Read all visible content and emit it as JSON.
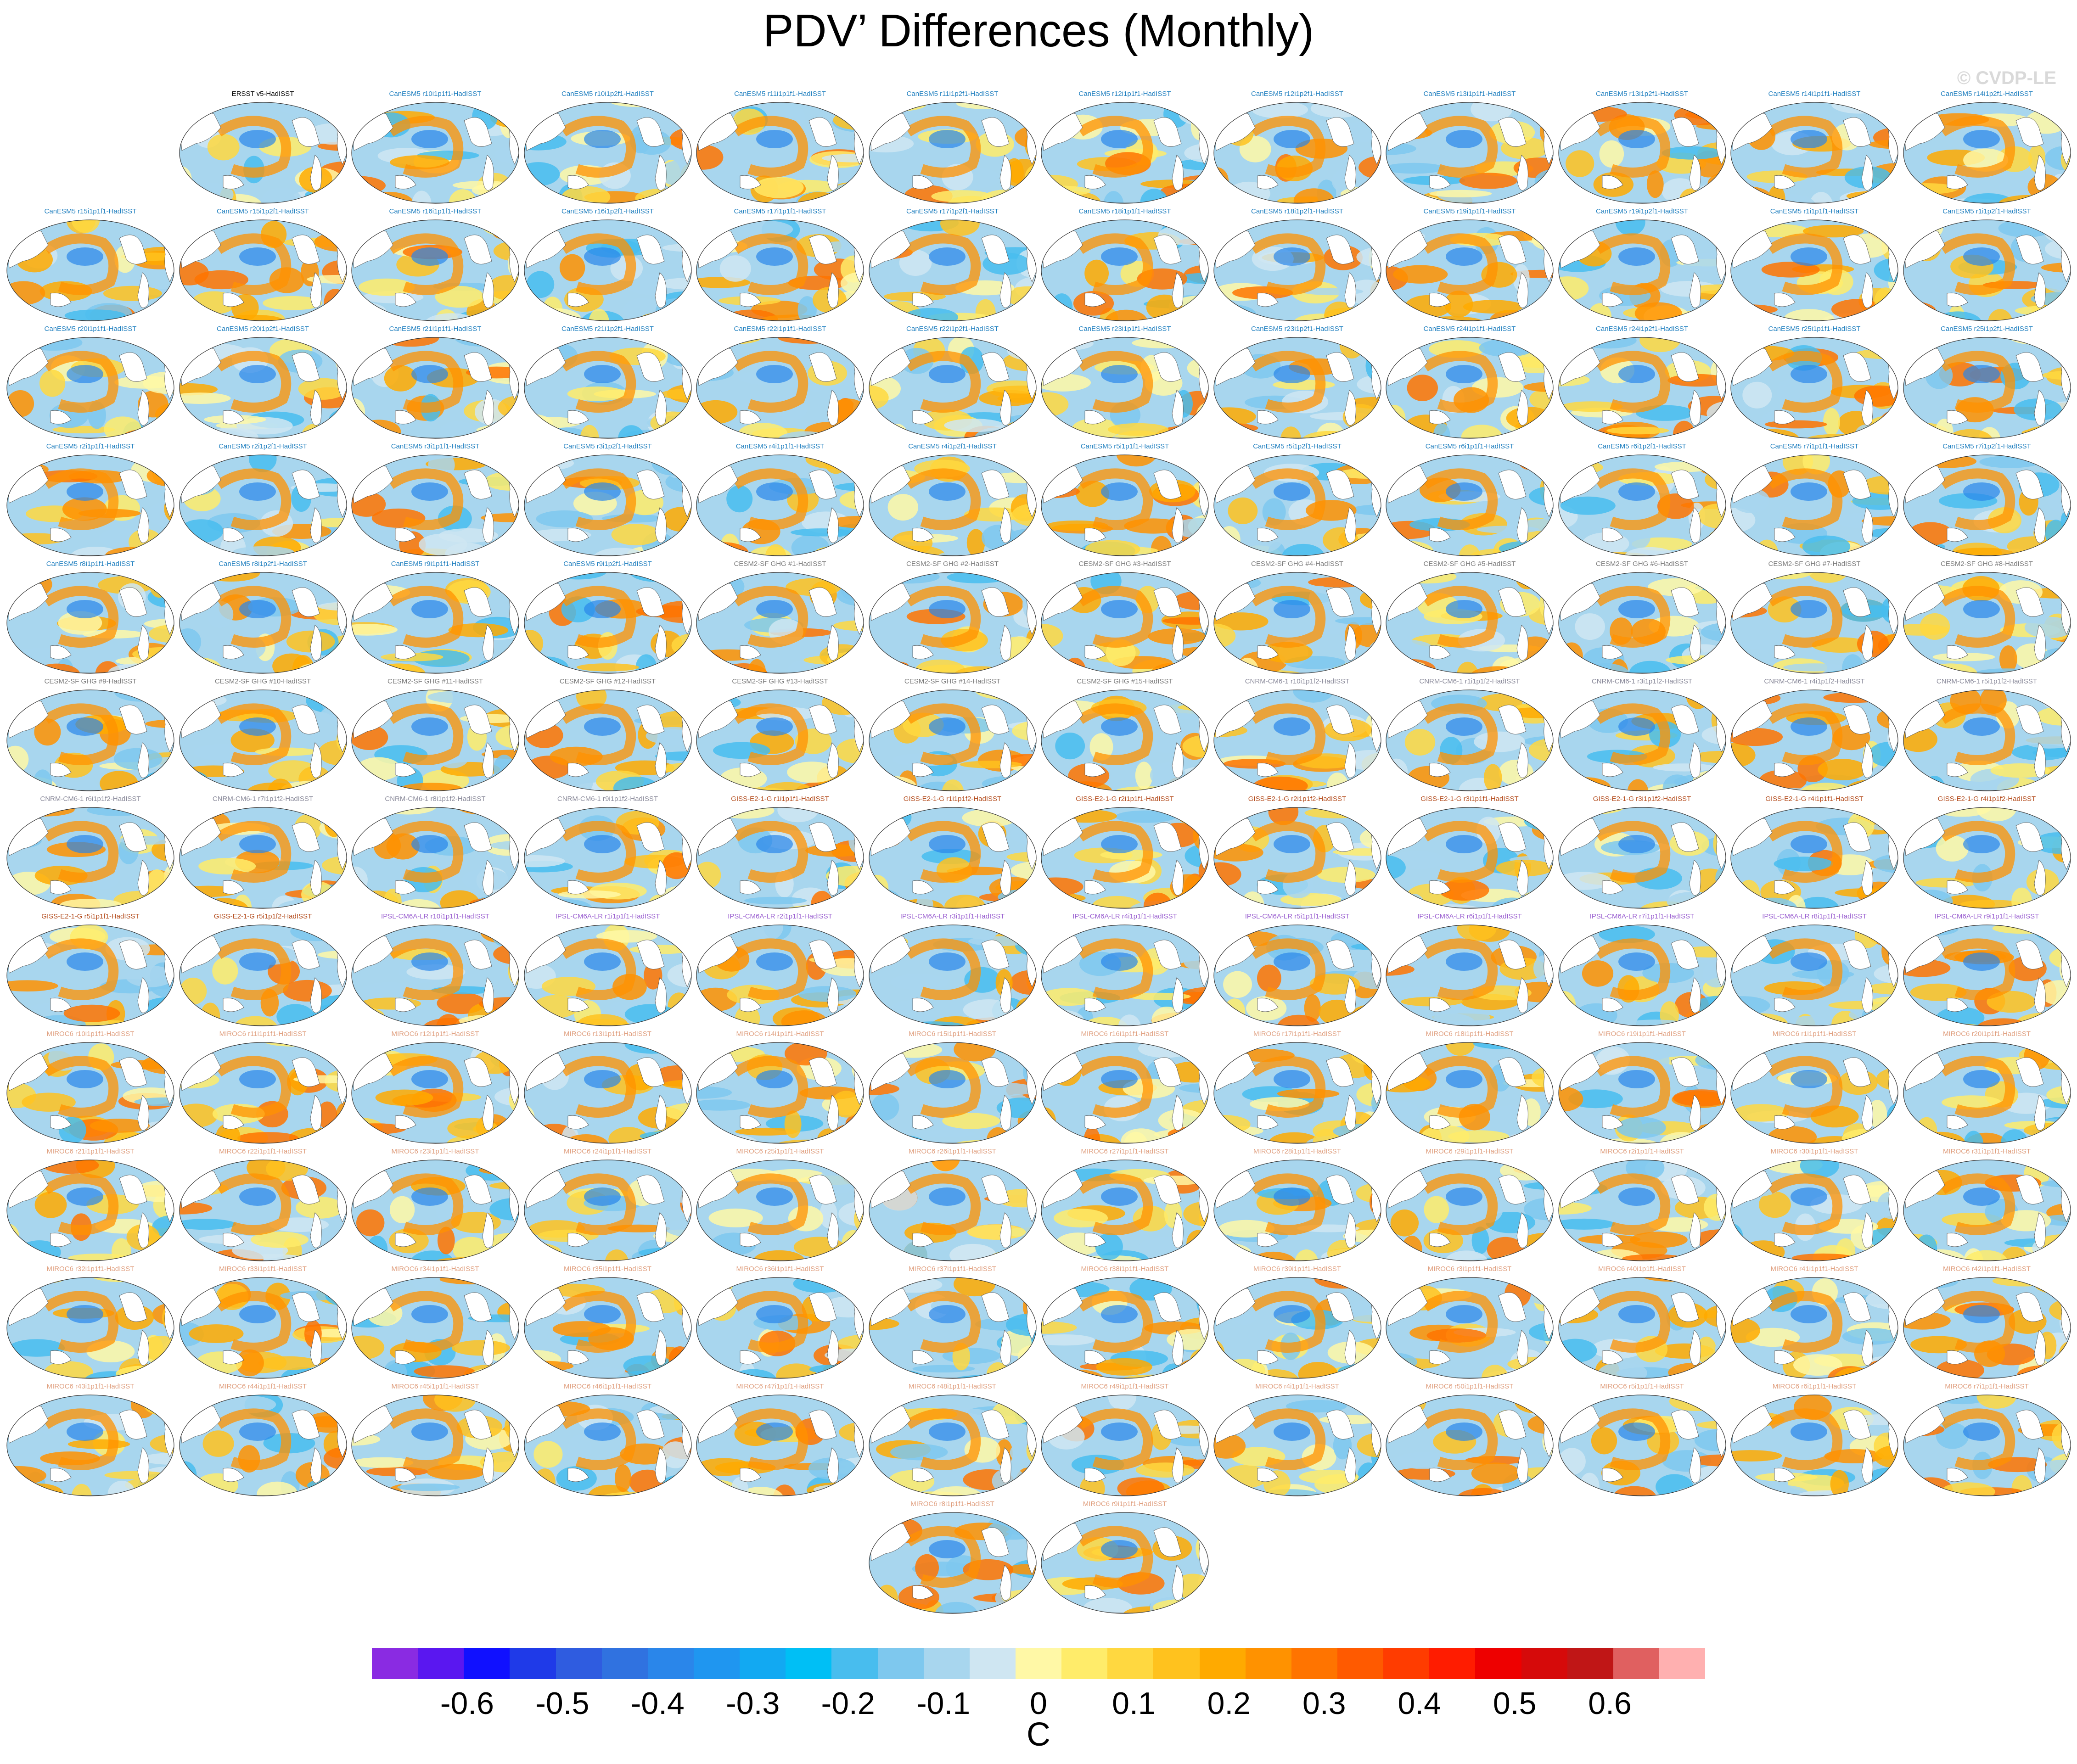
{
  "title": "PDV’ Differences (Monthly)",
  "watermark": "© CVDP-LE",
  "chart_data": {
    "type": "heatmap",
    "title": "PDV’ Differences (Monthly)",
    "map_projection": "global ellipse (Pacific-centred)",
    "units": "C",
    "colorbar": {
      "ticks": [
        "-0.6",
        "-0.5",
        "-0.4",
        "-0.3",
        "-0.2",
        "-0.1",
        "0",
        "0.1",
        "0.2",
        "0.3",
        "0.4",
        "0.5",
        "0.6"
      ],
      "tick_values": [
        -0.6,
        -0.5,
        -0.4,
        -0.3,
        -0.2,
        -0.1,
        0,
        0.1,
        0.2,
        0.3,
        0.4,
        0.5,
        0.6
      ],
      "range": [
        -0.7,
        0.7
      ],
      "colors": [
        "#8a2be2",
        "#5a17f0",
        "#1010ff",
        "#1f3ae8",
        "#2f5ce0",
        "#3072e0",
        "#2a86ea",
        "#1f96f0",
        "#12a9f2",
        "#00bff5",
        "#48bdee",
        "#7ec8ee",
        "#a8d6ee",
        "#cfe6f2",
        "#fff8a6",
        "#ffec6a",
        "#ffd840",
        "#ffc21e",
        "#ffaa00",
        "#ff9200",
        "#ff7400",
        "#ff5a00",
        "#ff3c00",
        "#ff1c00",
        "#ee0000",
        "#d60a0a",
        "#c01616",
        "#e06060",
        "#ffb0b0"
      ]
    },
    "panels": [
      {
        "label": "ERSST v5-HadISST",
        "group": "obs"
      },
      {
        "label": "CanESM5 r10i1p1f1-HadISST",
        "group": "CanESM5"
      },
      {
        "label": "CanESM5 r10i1p2f1-HadISST",
        "group": "CanESM5"
      },
      {
        "label": "CanESM5 r11i1p1f1-HadISST",
        "group": "CanESM5"
      },
      {
        "label": "CanESM5 r11i1p2f1-HadISST",
        "group": "CanESM5"
      },
      {
        "label": "CanESM5 r12i1p1f1-HadISST",
        "group": "CanESM5"
      },
      {
        "label": "CanESM5 r12i1p2f1-HadISST",
        "group": "CanESM5"
      },
      {
        "label": "CanESM5 r13i1p1f1-HadISST",
        "group": "CanESM5"
      },
      {
        "label": "CanESM5 r13i1p2f1-HadISST",
        "group": "CanESM5"
      },
      {
        "label": "CanESM5 r14i1p1f1-HadISST",
        "group": "CanESM5"
      },
      {
        "label": "CanESM5 r14i1p2f1-HadISST",
        "group": "CanESM5"
      },
      {
        "label": "CanESM5 r15i1p1f1-HadISST",
        "group": "CanESM5"
      },
      {
        "label": "CanESM5 r15i1p2f1-HadISST",
        "group": "CanESM5"
      },
      {
        "label": "CanESM5 r16i1p1f1-HadISST",
        "group": "CanESM5"
      },
      {
        "label": "CanESM5 r16i1p2f1-HadISST",
        "group": "CanESM5"
      },
      {
        "label": "CanESM5 r17i1p1f1-HadISST",
        "group": "CanESM5"
      },
      {
        "label": "CanESM5 r17i1p2f1-HadISST",
        "group": "CanESM5"
      },
      {
        "label": "CanESM5 r18i1p1f1-HadISST",
        "group": "CanESM5"
      },
      {
        "label": "CanESM5 r18i1p2f1-HadISST",
        "group": "CanESM5"
      },
      {
        "label": "CanESM5 r19i1p1f1-HadISST",
        "group": "CanESM5"
      },
      {
        "label": "CanESM5 r19i1p2f1-HadISST",
        "group": "CanESM5"
      },
      {
        "label": "CanESM5 r1i1p1f1-HadISST",
        "group": "CanESM5"
      },
      {
        "label": "CanESM5 r1i1p2f1-HadISST",
        "group": "CanESM5"
      },
      {
        "label": "CanESM5 r20i1p1f1-HadISST",
        "group": "CanESM5"
      },
      {
        "label": "CanESM5 r20i1p2f1-HadISST",
        "group": "CanESM5"
      },
      {
        "label": "CanESM5 r21i1p1f1-HadISST",
        "group": "CanESM5"
      },
      {
        "label": "CanESM5 r21i1p2f1-HadISST",
        "group": "CanESM5"
      },
      {
        "label": "CanESM5 r22i1p1f1-HadISST",
        "group": "CanESM5"
      },
      {
        "label": "CanESM5 r22i1p2f1-HadISST",
        "group": "CanESM5"
      },
      {
        "label": "CanESM5 r23i1p1f1-HadISST",
        "group": "CanESM5"
      },
      {
        "label": "CanESM5 r23i1p2f1-HadISST",
        "group": "CanESM5"
      },
      {
        "label": "CanESM5 r24i1p1f1-HadISST",
        "group": "CanESM5"
      },
      {
        "label": "CanESM5 r24i1p2f1-HadISST",
        "group": "CanESM5"
      },
      {
        "label": "CanESM5 r25i1p1f1-HadISST",
        "group": "CanESM5"
      },
      {
        "label": "CanESM5 r25i1p2f1-HadISST",
        "group": "CanESM5"
      },
      {
        "label": "CanESM5 r2i1p1f1-HadISST",
        "group": "CanESM5"
      },
      {
        "label": "CanESM5 r2i1p2f1-HadISST",
        "group": "CanESM5"
      },
      {
        "label": "CanESM5 r3i1p1f1-HadISST",
        "group": "CanESM5"
      },
      {
        "label": "CanESM5 r3i1p2f1-HadISST",
        "group": "CanESM5"
      },
      {
        "label": "CanESM5 r4i1p1f1-HadISST",
        "group": "CanESM5"
      },
      {
        "label": "CanESM5 r4i1p2f1-HadISST",
        "group": "CanESM5"
      },
      {
        "label": "CanESM5 r5i1p1f1-HadISST",
        "group": "CanESM5"
      },
      {
        "label": "CanESM5 r5i1p2f1-HadISST",
        "group": "CanESM5"
      },
      {
        "label": "CanESM5 r6i1p1f1-HadISST",
        "group": "CanESM5"
      },
      {
        "label": "CanESM5 r6i1p2f1-HadISST",
        "group": "CanESM5"
      },
      {
        "label": "CanESM5 r7i1p1f1-HadISST",
        "group": "CanESM5"
      },
      {
        "label": "CanESM5 r7i1p2f1-HadISST",
        "group": "CanESM5"
      },
      {
        "label": "CanESM5 r8i1p1f1-HadISST",
        "group": "CanESM5"
      },
      {
        "label": "CanESM5 r8i1p2f1-HadISST",
        "group": "CanESM5"
      },
      {
        "label": "CanESM5 r9i1p1f1-HadISST",
        "group": "CanESM5"
      },
      {
        "label": "CanESM5 r9i1p2f1-HadISST",
        "group": "CanESM5"
      },
      {
        "label": "CESM2-SF GHG #1-HadISST",
        "group": "CESM2"
      },
      {
        "label": "CESM2-SF GHG #2-HadISST",
        "group": "CESM2"
      },
      {
        "label": "CESM2-SF GHG #3-HadISST",
        "group": "CESM2"
      },
      {
        "label": "CESM2-SF GHG #4-HadISST",
        "group": "CESM2"
      },
      {
        "label": "CESM2-SF GHG #5-HadISST",
        "group": "CESM2"
      },
      {
        "label": "CESM2-SF GHG #6-HadISST",
        "group": "CESM2"
      },
      {
        "label": "CESM2-SF GHG #7-HadISST",
        "group": "CESM2"
      },
      {
        "label": "CESM2-SF GHG #8-HadISST",
        "group": "CESM2"
      },
      {
        "label": "CESM2-SF GHG #9-HadISST",
        "group": "CESM2"
      },
      {
        "label": "CESM2-SF GHG #10-HadISST",
        "group": "CESM2"
      },
      {
        "label": "CESM2-SF GHG #11-HadISST",
        "group": "CESM2"
      },
      {
        "label": "CESM2-SF GHG #12-HadISST",
        "group": "CESM2"
      },
      {
        "label": "CESM2-SF GHG #13-HadISST",
        "group": "CESM2"
      },
      {
        "label": "CESM2-SF GHG #14-HadISST",
        "group": "CESM2"
      },
      {
        "label": "CESM2-SF GHG #15-HadISST",
        "group": "CESM2"
      },
      {
        "label": "CNRM-CM6-1 r10i1p1f2-HadISST",
        "group": "CNRM"
      },
      {
        "label": "CNRM-CM6-1 r1i1p1f2-HadISST",
        "group": "CNRM"
      },
      {
        "label": "CNRM-CM6-1 r3i1p1f2-HadISST",
        "group": "CNRM"
      },
      {
        "label": "CNRM-CM6-1 r4i1p1f2-HadISST",
        "group": "CNRM"
      },
      {
        "label": "CNRM-CM6-1 r5i1p1f2-HadISST",
        "group": "CNRM"
      },
      {
        "label": "CNRM-CM6-1 r6i1p1f2-HadISST",
        "group": "CNRM"
      },
      {
        "label": "CNRM-CM6-1 r7i1p1f2-HadISST",
        "group": "CNRM"
      },
      {
        "label": "CNRM-CM6-1 r8i1p1f2-HadISST",
        "group": "CNRM"
      },
      {
        "label": "CNRM-CM6-1 r9i1p1f2-HadISST",
        "group": "CNRM"
      },
      {
        "label": "GISS-E2-1-G r1i1p1f1-HadISST",
        "group": "GISS"
      },
      {
        "label": "GISS-E2-1-G r1i1p1f2-HadISST",
        "group": "GISS"
      },
      {
        "label": "GISS-E2-1-G r2i1p1f1-HadISST",
        "group": "GISS"
      },
      {
        "label": "GISS-E2-1-G r2i1p1f2-HadISST",
        "group": "GISS"
      },
      {
        "label": "GISS-E2-1-G r3i1p1f1-HadISST",
        "group": "GISS"
      },
      {
        "label": "GISS-E2-1-G r3i1p1f2-HadISST",
        "group": "GISS"
      },
      {
        "label": "GISS-E2-1-G r4i1p1f1-HadISST",
        "group": "GISS"
      },
      {
        "label": "GISS-E2-1-G r4i1p1f2-HadISST",
        "group": "GISS"
      },
      {
        "label": "GISS-E2-1-G r5i1p1f1-HadISST",
        "group": "GISS"
      },
      {
        "label": "GISS-E2-1-G r5i1p1f2-HadISST",
        "group": "GISS"
      },
      {
        "label": "IPSL-CM6A-LR r10i1p1f1-HadISST",
        "group": "IPSL"
      },
      {
        "label": "IPSL-CM6A-LR r1i1p1f1-HadISST",
        "group": "IPSL"
      },
      {
        "label": "IPSL-CM6A-LR r2i1p1f1-HadISST",
        "group": "IPSL"
      },
      {
        "label": "IPSL-CM6A-LR r3i1p1f1-HadISST",
        "group": "IPSL"
      },
      {
        "label": "IPSL-CM6A-LR r4i1p1f1-HadISST",
        "group": "IPSL"
      },
      {
        "label": "IPSL-CM6A-LR r5i1p1f1-HadISST",
        "group": "IPSL"
      },
      {
        "label": "IPSL-CM6A-LR r6i1p1f1-HadISST",
        "group": "IPSL"
      },
      {
        "label": "IPSL-CM6A-LR r7i1p1f1-HadISST",
        "group": "IPSL"
      },
      {
        "label": "IPSL-CM6A-LR r8i1p1f1-HadISST",
        "group": "IPSL"
      },
      {
        "label": "IPSL-CM6A-LR r9i1p1f1-HadISST",
        "group": "IPSL"
      },
      {
        "label": "MIROC6 r10i1p1f1-HadISST",
        "group": "MIROC6"
      },
      {
        "label": "MIROC6 r11i1p1f1-HadISST",
        "group": "MIROC6"
      },
      {
        "label": "MIROC6 r12i1p1f1-HadISST",
        "group": "MIROC6"
      },
      {
        "label": "MIROC6 r13i1p1f1-HadISST",
        "group": "MIROC6"
      },
      {
        "label": "MIROC6 r14i1p1f1-HadISST",
        "group": "MIROC6"
      },
      {
        "label": "MIROC6 r15i1p1f1-HadISST",
        "group": "MIROC6"
      },
      {
        "label": "MIROC6 r16i1p1f1-HadISST",
        "group": "MIROC6"
      },
      {
        "label": "MIROC6 r17i1p1f1-HadISST",
        "group": "MIROC6"
      },
      {
        "label": "MIROC6 r18i1p1f1-HadISST",
        "group": "MIROC6"
      },
      {
        "label": "MIROC6 r19i1p1f1-HadISST",
        "group": "MIROC6"
      },
      {
        "label": "MIROC6 r1i1p1f1-HadISST",
        "group": "MIROC6"
      },
      {
        "label": "MIROC6 r20i1p1f1-HadISST",
        "group": "MIROC6"
      },
      {
        "label": "MIROC6 r21i1p1f1-HadISST",
        "group": "MIROC6"
      },
      {
        "label": "MIROC6 r22i1p1f1-HadISST",
        "group": "MIROC6"
      },
      {
        "label": "MIROC6 r23i1p1f1-HadISST",
        "group": "MIROC6"
      },
      {
        "label": "MIROC6 r24i1p1f1-HadISST",
        "group": "MIROC6"
      },
      {
        "label": "MIROC6 r25i1p1f1-HadISST",
        "group": "MIROC6"
      },
      {
        "label": "MIROC6 r26i1p1f1-HadISST",
        "group": "MIROC6"
      },
      {
        "label": "MIROC6 r27i1p1f1-HadISST",
        "group": "MIROC6"
      },
      {
        "label": "MIROC6 r28i1p1f1-HadISST",
        "group": "MIROC6"
      },
      {
        "label": "MIROC6 r29i1p1f1-HadISST",
        "group": "MIROC6"
      },
      {
        "label": "MIROC6 r2i1p1f1-HadISST",
        "group": "MIROC6"
      },
      {
        "label": "MIROC6 r30i1p1f1-HadISST",
        "group": "MIROC6"
      },
      {
        "label": "MIROC6 r31i1p1f1-HadISST",
        "group": "MIROC6"
      },
      {
        "label": "MIROC6 r32i1p1f1-HadISST",
        "group": "MIROC6"
      },
      {
        "label": "MIROC6 r33i1p1f1-HadISST",
        "group": "MIROC6"
      },
      {
        "label": "MIROC6 r34i1p1f1-HadISST",
        "group": "MIROC6"
      },
      {
        "label": "MIROC6 r35i1p1f1-HadISST",
        "group": "MIROC6"
      },
      {
        "label": "MIROC6 r36i1p1f1-HadISST",
        "group": "MIROC6"
      },
      {
        "label": "MIROC6 r37i1p1f1-HadISST",
        "group": "MIROC6"
      },
      {
        "label": "MIROC6 r38i1p1f1-HadISST",
        "group": "MIROC6"
      },
      {
        "label": "MIROC6 r39i1p1f1-HadISST",
        "group": "MIROC6"
      },
      {
        "label": "MIROC6 r3i1p1f1-HadISST",
        "group": "MIROC6"
      },
      {
        "label": "MIROC6 r40i1p1f1-HadISST",
        "group": "MIROC6"
      },
      {
        "label": "MIROC6 r41i1p1f1-HadISST",
        "group": "MIROC6"
      },
      {
        "label": "MIROC6 r42i1p1f1-HadISST",
        "group": "MIROC6"
      },
      {
        "label": "MIROC6 r43i1p1f1-HadISST",
        "group": "MIROC6"
      },
      {
        "label": "MIROC6 r44i1p1f1-HadISST",
        "group": "MIROC6"
      },
      {
        "label": "MIROC6 r45i1p1f1-HadISST",
        "group": "MIROC6"
      },
      {
        "label": "MIROC6 r46i1p1f1-HadISST",
        "group": "MIROC6"
      },
      {
        "label": "MIROC6 r47i1p1f1-HadISST",
        "group": "MIROC6"
      },
      {
        "label": "MIROC6 r48i1p1f1-HadISST",
        "group": "MIROC6"
      },
      {
        "label": "MIROC6 r49i1p1f1-HadISST",
        "group": "MIROC6"
      },
      {
        "label": "MIROC6 r4i1p1f1-HadISST",
        "group": "MIROC6"
      },
      {
        "label": "MIROC6 r50i1p1f1-HadISST",
        "group": "MIROC6"
      },
      {
        "label": "MIROC6 r5i1p1f1-HadISST",
        "group": "MIROC6"
      },
      {
        "label": "MIROC6 r6i1p1f1-HadISST",
        "group": "MIROC6"
      },
      {
        "label": "MIROC6 r7i1p1f1-HadISST",
        "group": "MIROC6"
      },
      {
        "label": "MIROC6 r8i1p1f1-HadISST",
        "group": "MIROC6"
      },
      {
        "label": "MIROC6 r9i1p1f1-HadISST",
        "group": "MIROC6"
      }
    ],
    "group_label_colors": {
      "obs": "#000000",
      "CanESM5": "#1f7fbf",
      "CESM2": "#7a7a7a",
      "CNRM": "#8a8a9a",
      "GISS": "#b34a1a",
      "IPSL": "#9a5fd0",
      "MIROC6": "#e0a080"
    }
  }
}
